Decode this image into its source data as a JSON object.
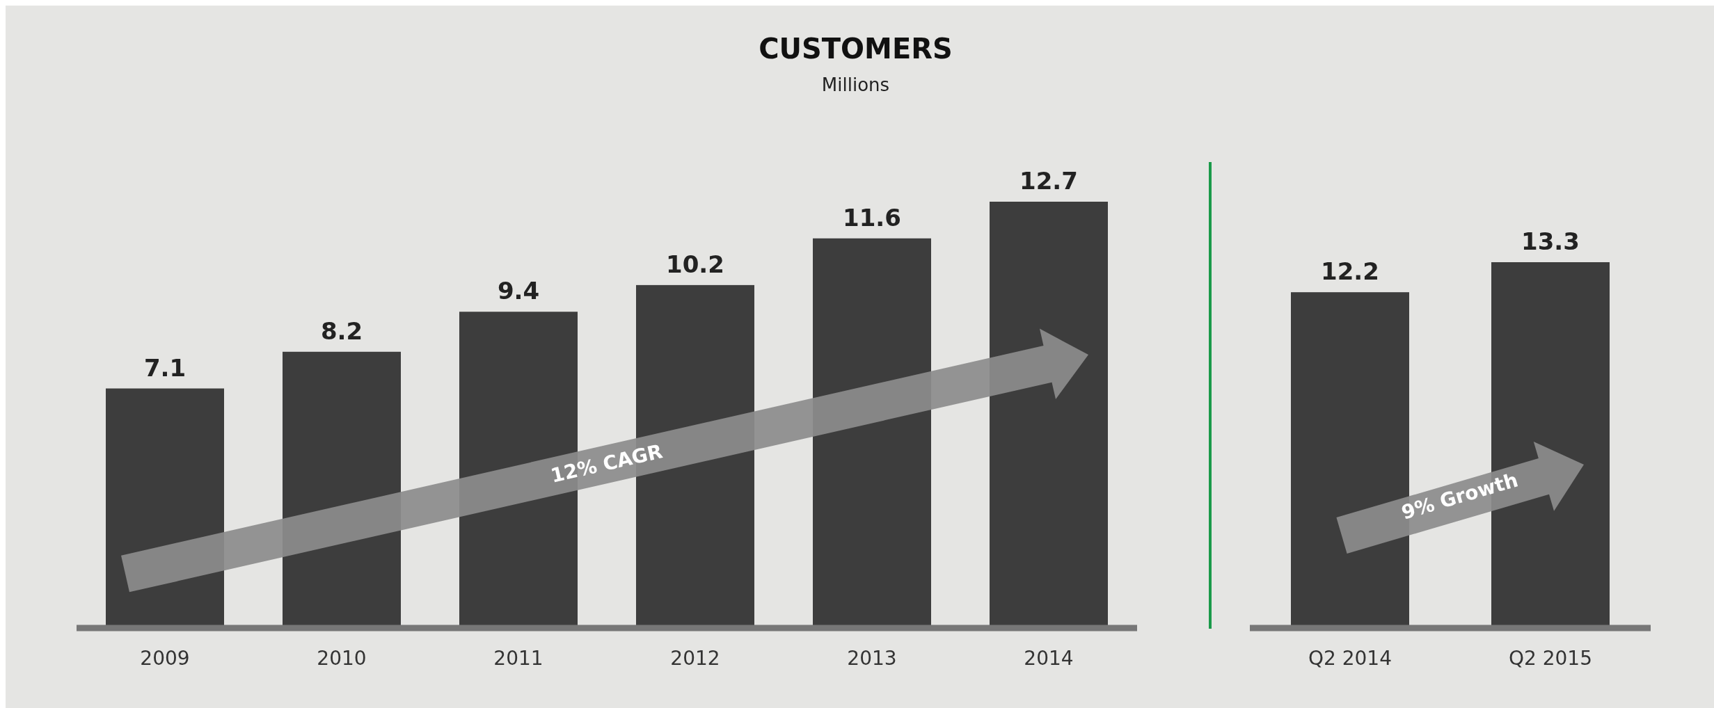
{
  "chart_data": [
    {
      "type": "bar",
      "title": "CUSTOMERS",
      "subtitle": "Millions",
      "categories": [
        "2009",
        "2010",
        "2011",
        "2012",
        "2013",
        "2014"
      ],
      "values": [
        7.1,
        8.2,
        9.4,
        10.2,
        11.6,
        12.7
      ],
      "color": "#3d3d3d",
      "data_labels": true,
      "annotations": [
        "12% CAGR"
      ]
    },
    {
      "type": "bar",
      "categories": [
        "Q2 2014",
        "Q2 2015"
      ],
      "values": [
        12.2,
        13.3
      ],
      "color": "#3d3d3d",
      "data_labels": true,
      "annotations": [
        "9% Growth"
      ]
    }
  ]
}
